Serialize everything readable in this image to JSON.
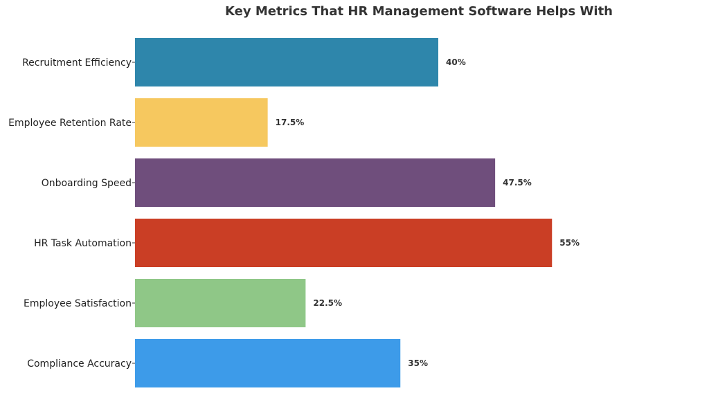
{
  "chart_data": {
    "type": "bar",
    "orientation": "horizontal",
    "title": "Key Metrics That HR Management Software Helps With",
    "xlabel": "",
    "ylabel": "",
    "xlim": [
      0,
      60
    ],
    "grid": false,
    "categories": [
      "Recruitment Efficiency",
      "Employee Retention Rate",
      "Onboarding Speed",
      "HR Task Automation",
      "Employee Satisfaction",
      "Compliance Accuracy"
    ],
    "values": [
      40,
      17.5,
      47.5,
      55,
      22.5,
      35
    ],
    "value_labels": [
      "40%",
      "17.5%",
      "47.5%",
      "55%",
      "22.5%",
      "35%"
    ],
    "colors": [
      "#2e86ab",
      "#f6c85f",
      "#6f4e7c",
      "#ca3e25",
      "#8fc787",
      "#3d9be9"
    ]
  }
}
